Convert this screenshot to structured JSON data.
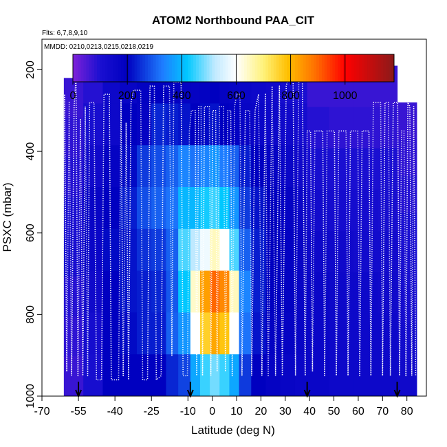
{
  "chart_data": {
    "type": "heatmap",
    "title": "ATOM2 Northbound PAA_CIT",
    "flights_label": "Flts: 6,7,8,9,10",
    "dates_label": "MMDD: 0210,0213,0215,0218,0219",
    "xlabel": "Latitude (deg N)",
    "ylabel": "PSXC (mbar)",
    "xlim": [
      -70,
      88
    ],
    "ylim": [
      1000,
      125
    ],
    "x_ticks": [
      -70,
      -55,
      -40,
      -25,
      -10,
      0,
      10,
      20,
      30,
      40,
      50,
      60,
      70,
      80
    ],
    "x_tick_labels": [
      "-70",
      "-55",
      "-40",
      "-25",
      "-10",
      "0",
      "10",
      "20",
      "30",
      "40",
      "50",
      "60",
      "70",
      "80"
    ],
    "y_ticks": [
      200,
      400,
      600,
      800,
      1000
    ],
    "y_tick_labels": [
      "200",
      "400",
      "600",
      "800",
      "1000"
    ],
    "colorbar": {
      "range": [
        0,
        1180
      ],
      "ticks": [
        0,
        200,
        400,
        600,
        800,
        1000
      ],
      "tick_labels": [
        "0",
        "200",
        "400",
        "600",
        "800",
        "1000"
      ],
      "stops": [
        {
          "value": 0,
          "color": "#7f22d9"
        },
        {
          "value": 100,
          "color": "#1a0fd1"
        },
        {
          "value": 200,
          "color": "#0000c0"
        },
        {
          "value": 330,
          "color": "#1e7dff"
        },
        {
          "value": 420,
          "color": "#00c8ff"
        },
        {
          "value": 520,
          "color": "#bfe9ff"
        },
        {
          "value": 600,
          "color": "#ffffff"
        },
        {
          "value": 700,
          "color": "#fff27a"
        },
        {
          "value": 790,
          "color": "#ffbf00"
        },
        {
          "value": 890,
          "color": "#ff7000"
        },
        {
          "value": 1000,
          "color": "#ff0000"
        },
        {
          "value": 1180,
          "color": "#8b1a1a"
        }
      ]
    },
    "background_value": 60,
    "columns": [
      {
        "x0": -61,
        "x1": -53,
        "ptop": 220,
        "vals": [
          70,
          80,
          90,
          100,
          110,
          90,
          80,
          70
        ]
      },
      {
        "x0": -53,
        "x1": -45,
        "ptop": 180,
        "vals": [
          90,
          110,
          140,
          170,
          160,
          140,
          120,
          110
        ]
      },
      {
        "x0": -45,
        "x1": -38,
        "ptop": 180,
        "vals": [
          150,
          150,
          180,
          200,
          210,
          200,
          200,
          200
        ]
      },
      {
        "x0": -38,
        "x1": -31,
        "ptop": 180,
        "vals": [
          170,
          200,
          210,
          230,
          220,
          220,
          210,
          200
        ]
      },
      {
        "x0": -31,
        "x1": -25,
        "ptop": 180,
        "vals": [
          190,
          180,
          260,
          280,
          250,
          230,
          230,
          200
        ]
      },
      {
        "x0": -25,
        "x1": -19,
        "ptop": 180,
        "vals": [
          200,
          240,
          280,
          300,
          260,
          240,
          230,
          200
        ]
      },
      {
        "x0": -19,
        "x1": -14,
        "ptop": 180,
        "vals": [
          190,
          230,
          300,
          320,
          300,
          290,
          300,
          240
        ]
      },
      {
        "x0": -14,
        "x1": -9,
        "ptop": 180,
        "vals": [
          180,
          220,
          340,
          400,
          460,
          420,
          360,
          270
        ]
      },
      {
        "x0": -9,
        "x1": -5,
        "ptop": 180,
        "vals": [
          180,
          200,
          320,
          400,
          520,
          640,
          600,
          380
        ]
      },
      {
        "x0": -5,
        "x1": -1,
        "ptop": 180,
        "vals": [
          190,
          210,
          340,
          430,
          580,
          830,
          760,
          450
        ]
      },
      {
        "x0": -1,
        "x1": 3,
        "ptop": 180,
        "vals": [
          200,
          220,
          360,
          450,
          650,
          900,
          820,
          480
        ]
      },
      {
        "x0": 3,
        "x1": 7,
        "ptop": 180,
        "vals": [
          180,
          200,
          330,
          420,
          600,
          860,
          780,
          450
        ]
      },
      {
        "x0": 7,
        "x1": 11,
        "ptop": 180,
        "vals": [
          170,
          190,
          300,
          360,
          460,
          650,
          600,
          380
        ]
      },
      {
        "x0": 11,
        "x1": 16,
        "ptop": 180,
        "vals": [
          160,
          170,
          230,
          260,
          300,
          340,
          320,
          260
        ]
      },
      {
        "x0": 16,
        "x1": 22,
        "ptop": 180,
        "vals": [
          150,
          160,
          200,
          220,
          230,
          230,
          220,
          200
        ]
      },
      {
        "x0": 22,
        "x1": 28,
        "ptop": 180,
        "vals": [
          140,
          150,
          180,
          200,
          200,
          200,
          190,
          180
        ]
      },
      {
        "x0": 28,
        "x1": 34,
        "ptop": 180,
        "vals": [
          120,
          140,
          160,
          180,
          190,
          190,
          180,
          170
        ]
      },
      {
        "x0": 34,
        "x1": 39,
        "ptop": 180,
        "vals": [
          100,
          120,
          140,
          160,
          170,
          170,
          170,
          160
        ]
      },
      {
        "x0": 39,
        "x1": 48,
        "ptop": 190,
        "vals": [
          70,
          90,
          110,
          130,
          150,
          160,
          160,
          160
        ]
      },
      {
        "x0": 48,
        "x1": 58,
        "ptop": 190,
        "vals": [
          70,
          80,
          100,
          120,
          140,
          150,
          150,
          150
        ]
      },
      {
        "x0": 58,
        "x1": 68,
        "ptop": 190,
        "vals": [
          70,
          80,
          100,
          120,
          130,
          150,
          150,
          150
        ]
      },
      {
        "x0": 68,
        "x1": 76,
        "ptop": 190,
        "vals": [
          70,
          80,
          100,
          110,
          130,
          140,
          150,
          150
        ]
      },
      {
        "x0": 76,
        "x1": 84,
        "ptop": 280,
        "vals": [
          70,
          80,
          90,
          100,
          110,
          120,
          130,
          140
        ]
      }
    ],
    "flight_track": [
      [
        -63,
        950
      ],
      [
        -62.5,
        230
      ],
      [
        -61.6,
        950
      ],
      [
        -60.7,
        260
      ],
      [
        -59.8,
        940
      ],
      [
        -58.8,
        280
      ],
      [
        -57.8,
        950
      ],
      [
        -56.8,
        290
      ],
      [
        -56,
        220
      ],
      [
        -55.2,
        950
      ],
      [
        -54.2,
        320
      ],
      [
        -53.2,
        950
      ],
      [
        -52.2,
        290
      ],
      [
        -51.2,
        950
      ],
      [
        -50.4,
        280
      ],
      [
        -48.6,
        280
      ],
      [
        -47.6,
        960
      ],
      [
        -45.5,
        960
      ],
      [
        -44.5,
        260
      ],
      [
        -42.3,
        260
      ],
      [
        -41.5,
        960
      ],
      [
        -38.5,
        960
      ],
      [
        -37.5,
        270
      ],
      [
        -36.6,
        950
      ],
      [
        -35.4,
        330
      ],
      [
        -34.4,
        960
      ],
      [
        -33.4,
        280
      ],
      [
        -32.4,
        250
      ],
      [
        -29.4,
        250
      ],
      [
        -28.6,
        960
      ],
      [
        -26.6,
        960
      ],
      [
        -25.6,
        240
      ],
      [
        -23.8,
        240
      ],
      [
        -23,
        960
      ],
      [
        -21,
        950
      ],
      [
        -20,
        240
      ],
      [
        -17.6,
        240
      ],
      [
        -16.6,
        900
      ],
      [
        -15.8,
        230
      ],
      [
        -12.8,
        230
      ],
      [
        -12,
        950
      ],
      [
        -10.2,
        950
      ],
      [
        -9.4,
        350
      ],
      [
        -8.6,
        300
      ],
      [
        -7,
        300
      ],
      [
        -6.4,
        950
      ],
      [
        -5.6,
        290
      ],
      [
        -4.6,
        290
      ],
      [
        -4,
        950
      ],
      [
        -3.2,
        290
      ],
      [
        -1.2,
        290
      ],
      [
        -0.6,
        950
      ],
      [
        0.2,
        300
      ],
      [
        1.4,
        300
      ],
      [
        2,
        940
      ],
      [
        3,
        290
      ],
      [
        4.6,
        290
      ],
      [
        5.4,
        940
      ],
      [
        6.4,
        300
      ],
      [
        7.6,
        300
      ],
      [
        8.2,
        950
      ],
      [
        9.2,
        290
      ],
      [
        10,
        260
      ],
      [
        11.4,
        260
      ],
      [
        12.2,
        950
      ],
      [
        13.6,
        300
      ],
      [
        15.4,
        300
      ],
      [
        16.2,
        950
      ],
      [
        17.6,
        300
      ],
      [
        19,
        260
      ],
      [
        20.4,
        950
      ],
      [
        21.8,
        260
      ],
      [
        23,
        950
      ],
      [
        24.6,
        240
      ],
      [
        26,
        950
      ],
      [
        27.6,
        240
      ],
      [
        28.8,
        950
      ],
      [
        30.4,
        240
      ],
      [
        31.6,
        210
      ],
      [
        33.2,
        210
      ],
      [
        34.2,
        950
      ],
      [
        35.6,
        210
      ],
      [
        37,
        210
      ],
      [
        38.2,
        950
      ],
      [
        39,
        350
      ],
      [
        40.4,
        350
      ],
      [
        41.2,
        940
      ],
      [
        42.2,
        350
      ],
      [
        45.4,
        350
      ],
      [
        46.2,
        950
      ],
      [
        47.2,
        350
      ],
      [
        50.2,
        350
      ],
      [
        51,
        950
      ],
      [
        52,
        350
      ],
      [
        55,
        350
      ],
      [
        55.8,
        950
      ],
      [
        56.8,
        350
      ],
      [
        59.8,
        350
      ],
      [
        60.6,
        950
      ],
      [
        61.6,
        350
      ],
      [
        64.4,
        350
      ],
      [
        65.2,
        950
      ],
      [
        66.2,
        280
      ],
      [
        69.2,
        280
      ],
      [
        70,
        950
      ],
      [
        71,
        280
      ],
      [
        72.4,
        280
      ],
      [
        73.2,
        950
      ],
      [
        74.4,
        280
      ],
      [
        76.2,
        280
      ],
      [
        77,
        950
      ],
      [
        77.8,
        350
      ],
      [
        78.8,
        350
      ],
      [
        79.6,
        950
      ],
      [
        80.4,
        280
      ],
      [
        81.2,
        290
      ],
      [
        82,
        950
      ],
      [
        82.8,
        290
      ],
      [
        83.6,
        950
      ]
    ],
    "arrows_at_lat": [
      -55,
      -9,
      39,
      76
    ]
  }
}
